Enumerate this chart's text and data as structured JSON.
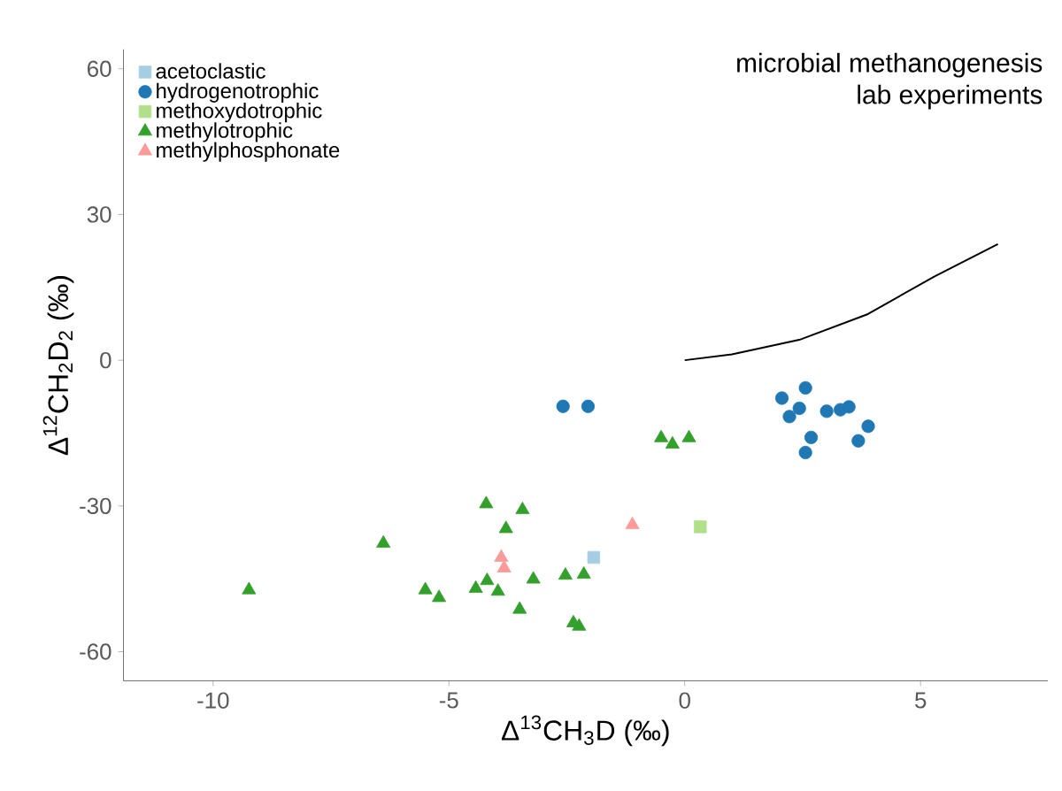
{
  "chart_data": {
    "type": "scatter",
    "xlabel": "Δ$^{13}$CH$_{3}$D (‰)",
    "ylabel": "Δ$^{12}$CH$_{2}$D$_{2}$ (‰)",
    "annotations": [
      "microbial methanogenesis",
      "lab experiments"
    ],
    "xlim": [
      -11.9,
      7.7
    ],
    "ylim": [
      -66,
      64
    ],
    "xticks": [
      -10,
      -5,
      0,
      5
    ],
    "yticks": [
      -60,
      -30,
      0,
      30,
      60
    ],
    "grid": false,
    "legend": "top left",
    "series": [
      {
        "name": "acetoclastic",
        "color": "#a6cee3",
        "marker": "square",
        "x": [
          -1.93
        ],
        "values": [
          -40.6
        ]
      },
      {
        "name": "hydrogenotrophic",
        "color": "#1f78b4",
        "marker": "circle",
        "x": [
          -2.58,
          -2.05,
          2.56,
          2.06,
          2.43,
          2.22,
          3.01,
          3.3,
          3.48,
          3.89,
          3.68,
          2.68,
          2.56
        ],
        "values": [
          -9.5,
          -9.5,
          -5.7,
          -7.8,
          -9.9,
          -11.6,
          -10.5,
          -10.2,
          -9.6,
          -13.6,
          -16.6,
          -15.9,
          -19.0
        ]
      },
      {
        "name": "methoxydotrophic",
        "color": "#b2df8a",
        "marker": "square",
        "x": [
          0.33
        ],
        "values": [
          -34.3
        ]
      },
      {
        "name": "methylotrophic",
        "color": "#33a02c",
        "marker": "triangle",
        "x": [
          -9.24,
          -6.39,
          -4.21,
          -3.44,
          -3.79,
          -5.5,
          -5.21,
          -4.43,
          -4.19,
          -3.96,
          -3.21,
          -3.5,
          -2.53,
          -2.14,
          -2.36,
          -2.24,
          -0.5,
          -0.26,
          0.09
        ],
        "values": [
          -47.3,
          -37.7,
          -29.6,
          -30.8,
          -34.7,
          -47.3,
          -48.9,
          -47.0,
          -45.4,
          -47.6,
          -45.1,
          -51.3,
          -44.3,
          -44.1,
          -54.1,
          -54.8,
          -16.0,
          -17.3,
          -16.0
        ]
      },
      {
        "name": "methylphosphonate",
        "color": "#fb9a99",
        "marker": "triangle",
        "x": [
          -1.11,
          -3.89,
          -3.83
        ],
        "values": [
          -33.9,
          -40.6,
          -42.8
        ]
      },
      {
        "type": "line",
        "color": "#000000",
        "marker": "none",
        "x": [
          0,
          1.0,
          2.43,
          3.86,
          5.29,
          6.64
        ],
        "values": [
          0,
          1.2,
          4.2,
          9.4,
          17.2,
          23.9
        ]
      }
    ]
  }
}
